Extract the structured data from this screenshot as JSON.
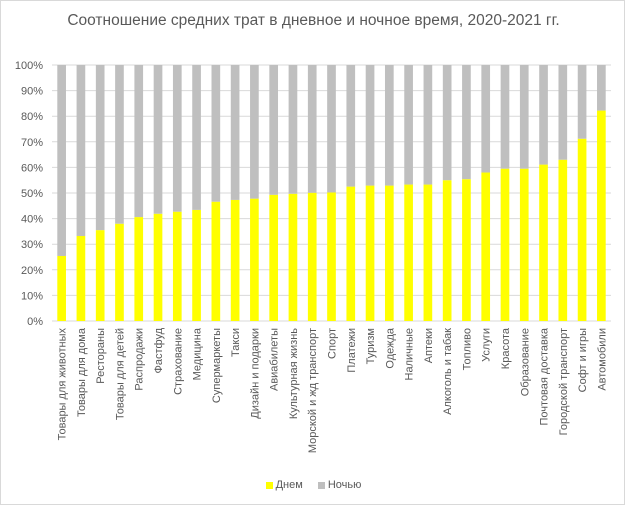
{
  "chart_data": {
    "type": "bar",
    "stacked": "percent",
    "title": "Соотношение средних трат в дневное и ночное время, 2020-2021 гг.",
    "xlabel": "",
    "ylabel": "",
    "ylim": [
      0,
      100
    ],
    "yticks": [
      "0%",
      "10%",
      "20%",
      "30%",
      "40%",
      "50%",
      "60%",
      "70%",
      "80%",
      "90%",
      "100%"
    ],
    "grid": true,
    "legend": "bottom",
    "categories": [
      "Товары для животных",
      "Товары для дома",
      "Рестораны",
      "Товары для детей",
      "Распродажи",
      "Фастфуд",
      "Страхование",
      "Медицина",
      "Супермаркеты",
      "Такси",
      "Дизайн и подарки",
      "Авиабилеты",
      "Культурная жизнь",
      "Морской и жд транспорт",
      "Спорт",
      "Платежи",
      "Туризм",
      "Одежда",
      "Наличные",
      "Аптеки",
      "Алкоголь и табак",
      "Топливо",
      "Услуги",
      "Красота",
      "Образование",
      "Почтовая доставка",
      "Городской транспорт",
      "Софт и игры",
      "Автомобили"
    ],
    "series": [
      {
        "name": "Днем",
        "color": "#ffff00",
        "values": [
          25.4,
          33.2,
          35.5,
          38.0,
          40.6,
          41.9,
          42.7,
          43.4,
          46.6,
          47.3,
          47.8,
          49.3,
          49.7,
          50.1,
          50.2,
          52.5,
          52.9,
          52.9,
          53.3,
          53.3,
          55.0,
          55.4,
          58.0,
          59.5,
          59.5,
          61.1,
          63.0,
          71.2,
          82.2
        ]
      },
      {
        "name": "Ночью",
        "color": "#bfbfbf",
        "values": [
          74.6,
          66.8,
          64.5,
          62.0,
          59.4,
          58.1,
          57.3,
          56.6,
          53.4,
          52.7,
          52.2,
          50.7,
          50.3,
          49.9,
          49.8,
          47.5,
          47.1,
          47.1,
          46.7,
          46.7,
          45.0,
          44.6,
          42.0,
          40.5,
          40.5,
          38.9,
          37.0,
          28.8,
          17.8
        ]
      }
    ]
  }
}
